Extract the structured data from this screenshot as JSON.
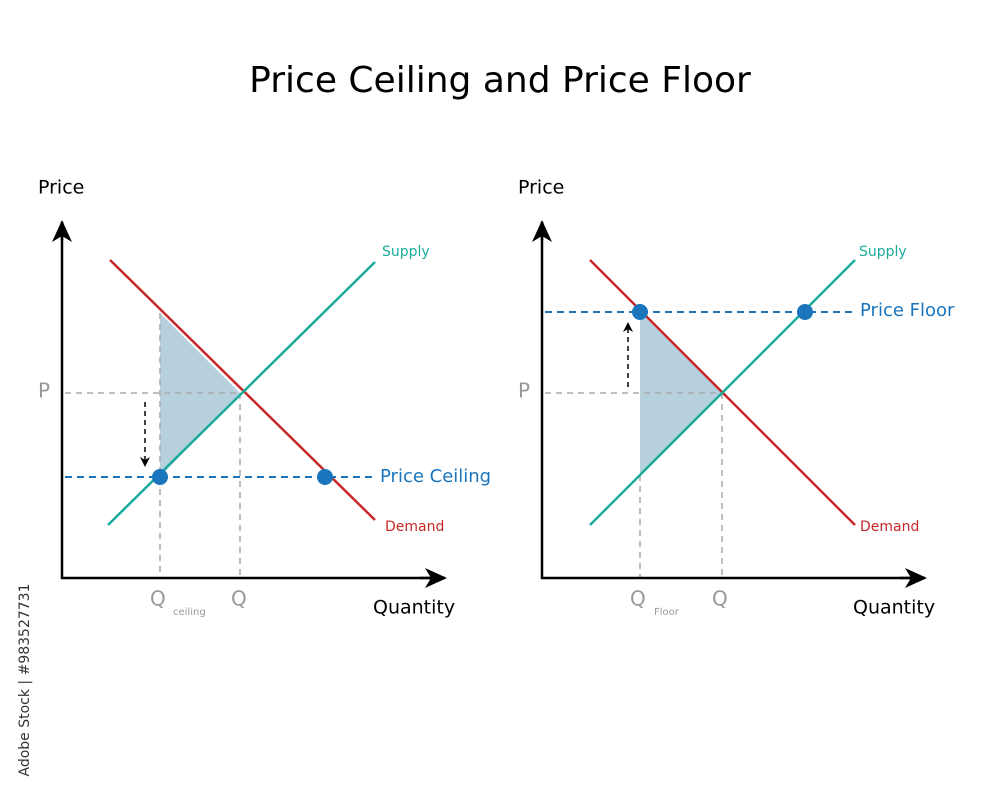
{
  "title": "Price Ceiling and Price Floor",
  "panels": [
    {
      "y_label": "Price",
      "x_label": "Quantity",
      "supply_label": "Supply",
      "demand_label": "Demand",
      "control_label": "Price Ceiling",
      "p_label": "P",
      "q_label": "Q",
      "q_control_label": "Q",
      "q_control_sub": "ceiling"
    },
    {
      "y_label": "Price",
      "x_label": "Quantity",
      "supply_label": "Supply",
      "demand_label": "Demand",
      "control_label": "Price Floor",
      "p_label": "P",
      "q_label": "Q",
      "q_control_label": "Q",
      "q_control_sub": "Floor"
    }
  ],
  "watermark": "Adobe Stock | #983527731"
}
